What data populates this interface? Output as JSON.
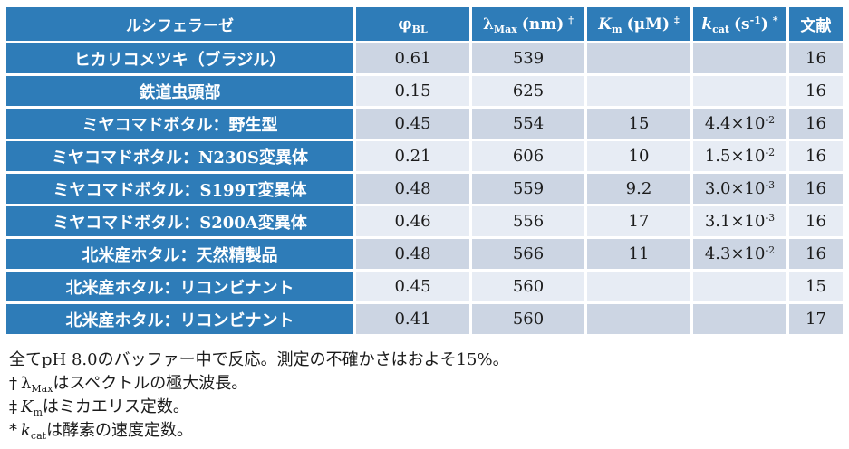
{
  "colors": {
    "header_blue": "#2e7cb8",
    "row_dark": "#ccd5e3",
    "row_light": "#e7ecf4",
    "text": "#1b1b1b",
    "header_text": "#ffffff"
  },
  "table": {
    "col_luciferase": "ルシフェラーゼ",
    "col_phi": {
      "symbol": "φ",
      "sub": "BL"
    },
    "col_lambda": {
      "symbol": "λ",
      "sub": "Max",
      "unit": "(nm)",
      "marker": "†"
    },
    "col_km": {
      "symbol": "K",
      "sub": "m",
      "unit": "(μM)",
      "marker": "‡"
    },
    "col_kcat": {
      "symbol": "k",
      "sub": "cat",
      "open": "(s",
      "exp": "-1",
      "close": ")",
      "marker": "*"
    },
    "col_ref": "文献",
    "rows": [
      {
        "label": "ヒカリコメツキ（ブラジル）",
        "phi": "0.61",
        "lambda": "539",
        "km": "",
        "kcat_base": "",
        "kcat_exp": "",
        "ref": "16"
      },
      {
        "label": "鉄道虫頭部",
        "phi": "0.15",
        "lambda": "625",
        "km": "",
        "kcat_base": "",
        "kcat_exp": "",
        "ref": "16"
      },
      {
        "label": "ミヤコマドボタル：野生型",
        "phi": "0.45",
        "lambda": "554",
        "km": "15",
        "kcat_base": "4.4×10",
        "kcat_exp": "-2",
        "ref": "16"
      },
      {
        "label": "ミヤコマドボタル：N230S変異体",
        "phi": "0.21",
        "lambda": "606",
        "km": "10",
        "kcat_base": "1.5×10",
        "kcat_exp": "-2",
        "ref": "16"
      },
      {
        "label": "ミヤコマドボタル：S199T変異体",
        "phi": "0.48",
        "lambda": "559",
        "km": "9.2",
        "kcat_base": "3.0×10",
        "kcat_exp": "-3",
        "ref": "16"
      },
      {
        "label": "ミヤコマドボタル：S200A変異体",
        "phi": "0.46",
        "lambda": "556",
        "km": "17",
        "kcat_base": "3.1×10",
        "kcat_exp": "-3",
        "ref": "16"
      },
      {
        "label": "北米産ホタル：天然精製品",
        "phi": "0.48",
        "lambda": "566",
        "km": "11",
        "kcat_base": "4.3×10",
        "kcat_exp": "-2",
        "ref": "16"
      },
      {
        "label": "北米産ホタル：リコンビナント",
        "phi": "0.45",
        "lambda": "560",
        "km": "",
        "kcat_base": "",
        "kcat_exp": "",
        "ref": "15"
      },
      {
        "label": "北米産ホタル：リコンビナント",
        "phi": "0.41",
        "lambda": "560",
        "km": "",
        "kcat_base": "",
        "kcat_exp": "",
        "ref": "17"
      }
    ]
  },
  "footnotes": {
    "line1": "全てpH 8.0のバッファー中で反応。測定の不確かさはおよそ15%。",
    "line2": {
      "marker": "†",
      "symbol": "λ",
      "sub": "Max",
      "text": "はスペクトルの極大波長。"
    },
    "line3": {
      "marker": "‡",
      "symbol": "K",
      "sub": "m",
      "text": "はミカエリス定数。"
    },
    "line4": {
      "marker": "*",
      "symbol": "k",
      "sub": "cat",
      "text": "は酵素の速度定数。"
    }
  }
}
